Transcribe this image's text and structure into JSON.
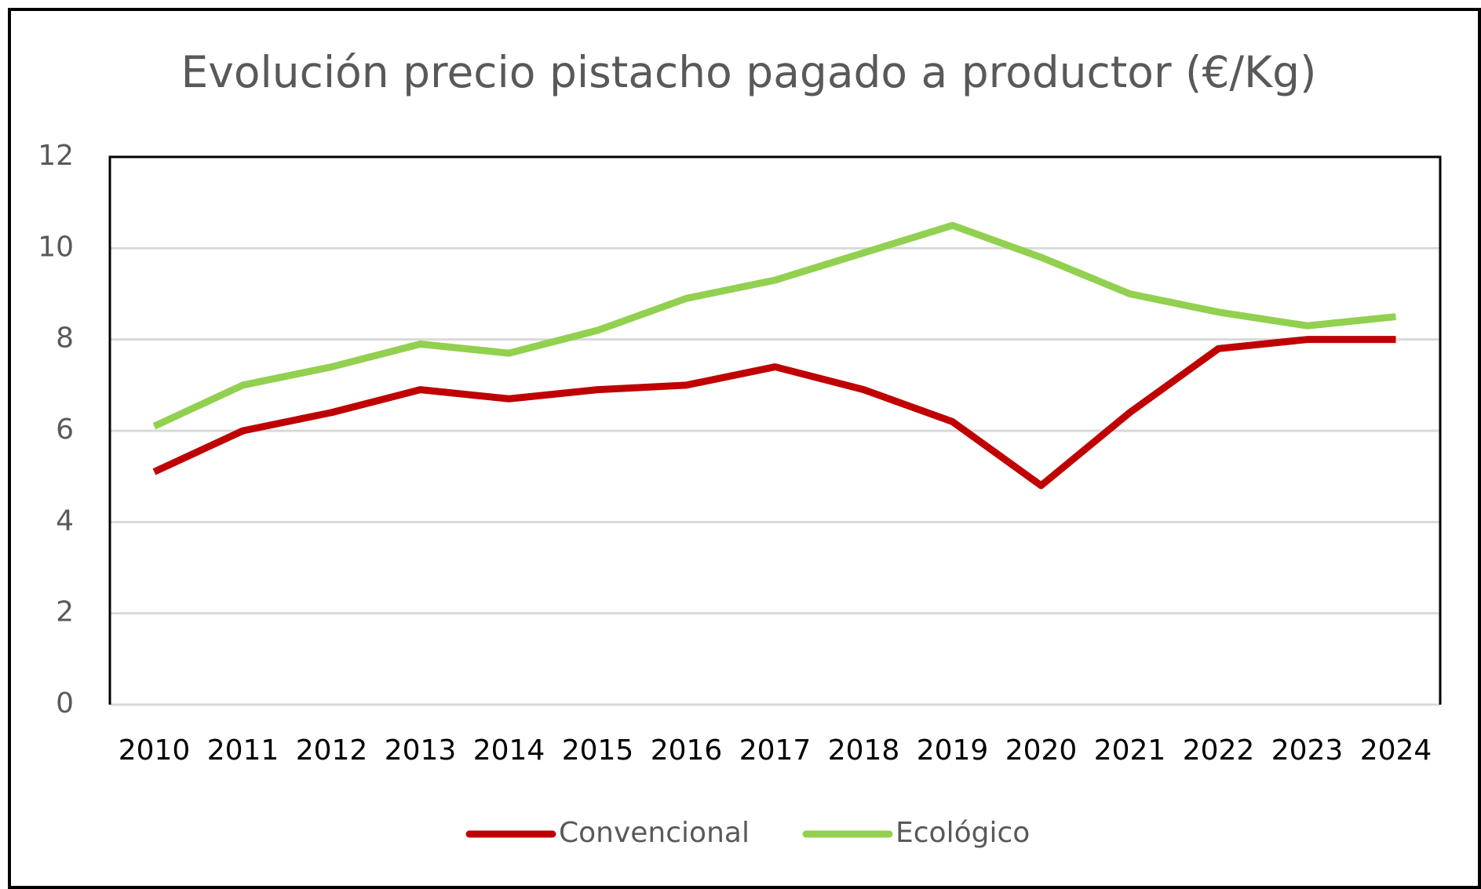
{
  "chart_data": {
    "type": "line",
    "title": "Evolución precio pistacho pagado a productor (€/Kg)",
    "categories": [
      "2010",
      "2011",
      "2012",
      "2013",
      "2014",
      "2015",
      "2016",
      "2017",
      "2018",
      "2019",
      "2020",
      "2021",
      "2022",
      "2023",
      "2024"
    ],
    "series": [
      {
        "name": "Convencional",
        "color": "#c00000",
        "values": [
          5.1,
          6.0,
          6.4,
          6.9,
          6.7,
          6.9,
          7.0,
          7.4,
          6.9,
          6.2,
          4.8,
          6.4,
          7.8,
          8.0,
          8.0
        ]
      },
      {
        "name": "Ecológico",
        "color": "#92d050",
        "values": [
          6.1,
          7.0,
          7.4,
          7.9,
          7.7,
          8.2,
          8.9,
          9.3,
          9.9,
          10.5,
          9.8,
          9.0,
          8.6,
          8.3,
          8.5
        ]
      }
    ],
    "ylim": [
      0,
      12
    ],
    "yticks": [
      0,
      2,
      4,
      6,
      8,
      10,
      12
    ],
    "grid": true,
    "legend": "bottom"
  }
}
